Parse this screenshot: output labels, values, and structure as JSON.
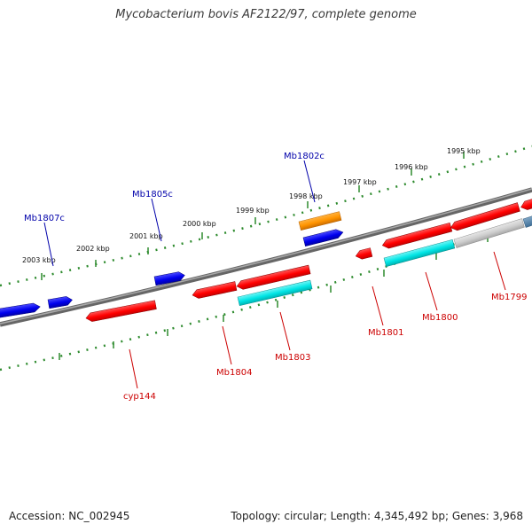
{
  "title": "Mycobacterium bovis AF2122/97, complete genome",
  "footer": {
    "accession": "Accession: NC_002945",
    "summary": "Topology: circular; Length: 4,345,492 bp; Genes: 3,968"
  },
  "colors": {
    "backbone": "#808080",
    "tick": "#2e8b2e",
    "forward_gene": "#ff0000",
    "reverse_gene": "#0000ee",
    "feature_orange": "#ff9900",
    "feature_cyan": "#00e5e5",
    "feature_grey": "#cccccc",
    "label_red": "#cc0000",
    "label_blue": "#0000aa"
  },
  "kbp_labels": [
    "2003 kbp",
    "2002 kbp",
    "2001 kbp",
    "2000 kbp",
    "1999 kbp",
    "1998 kbp",
    "1997 kbp",
    "1996 kbp",
    "1995 kbp"
  ],
  "genes": {
    "cyp144": "cyp144",
    "mb1799": "Mb1799",
    "mb1800": "Mb1800",
    "mb1801": "Mb1801",
    "mb1802c": "Mb1802c",
    "mb1803": "Mb1803",
    "mb1804": "Mb1804",
    "mb1805c": "Mb1805c",
    "mb1807c": "Mb1807c"
  }
}
